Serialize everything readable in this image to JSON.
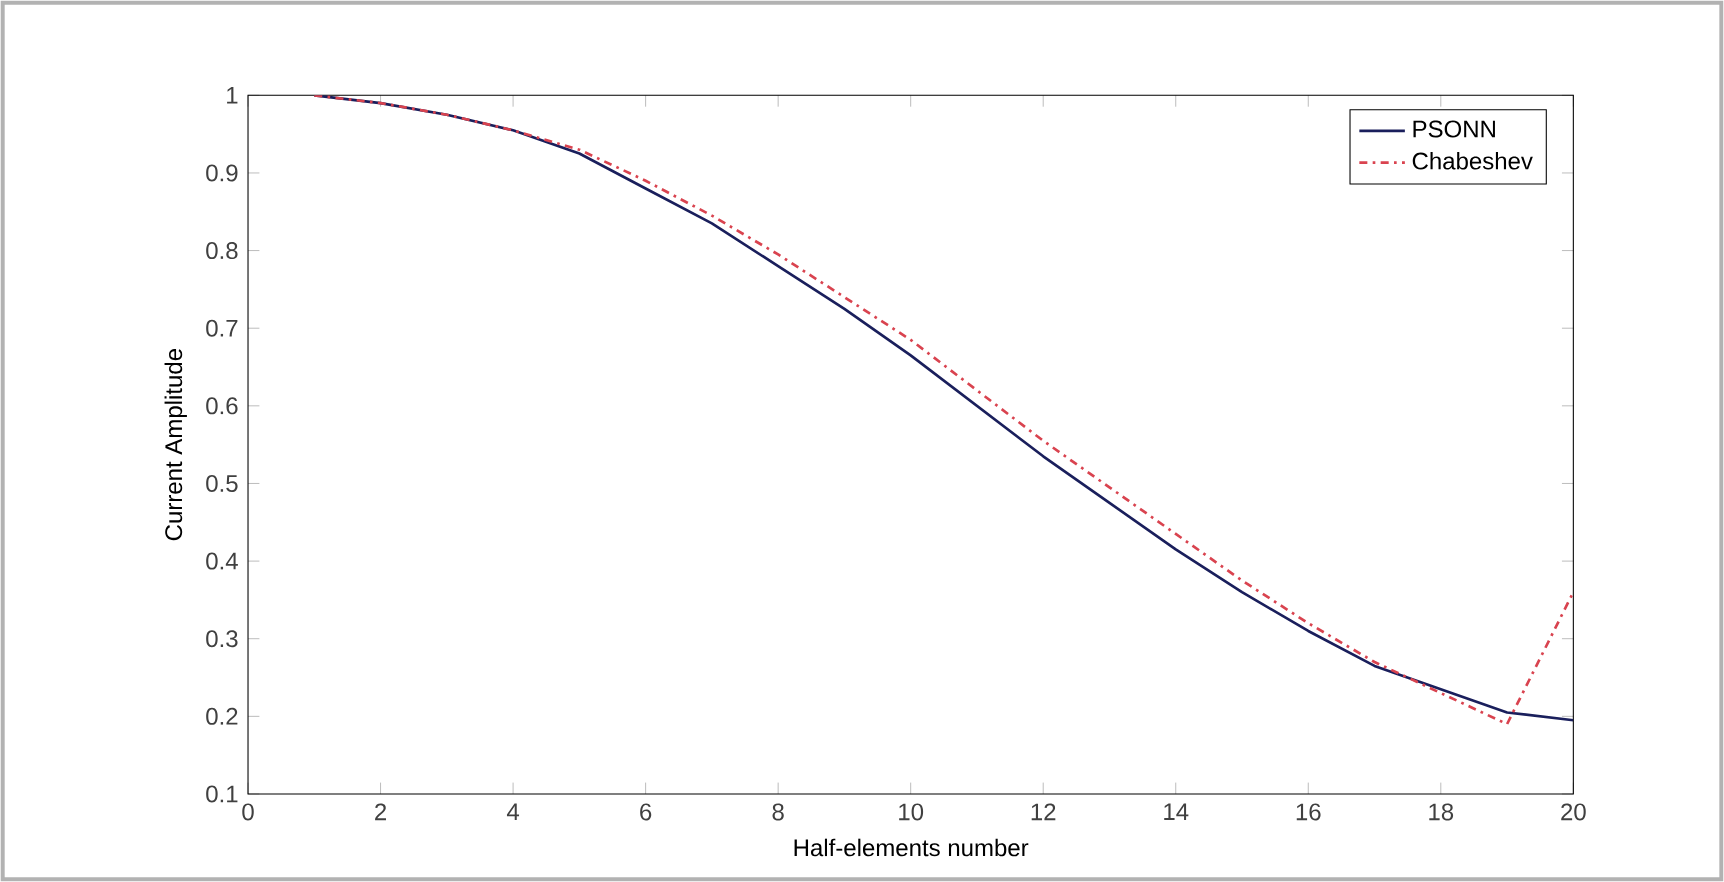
{
  "chart_data": {
    "type": "line",
    "xlabel": "Half-elements number",
    "ylabel": "Current Amplitude",
    "x": [
      1,
      2,
      3,
      4,
      5,
      6,
      7,
      8,
      9,
      10,
      11,
      12,
      13,
      14,
      15,
      16,
      17,
      18,
      19,
      20
    ],
    "series": [
      {
        "name": "PSONN",
        "color": "#1a1f5c",
        "line_style": "solid",
        "values": [
          1.0,
          0.99,
          0.975,
          0.955,
          0.925,
          0.88,
          0.835,
          0.78,
          0.725,
          0.665,
          0.6,
          0.535,
          0.475,
          0.415,
          0.36,
          0.31,
          0.265,
          0.235,
          0.205,
          0.195
        ]
      },
      {
        "name": "Chabeshev",
        "color": "#d9434f",
        "line_style": "dashdot",
        "values": [
          1.0,
          0.99,
          0.975,
          0.955,
          0.93,
          0.89,
          0.845,
          0.795,
          0.74,
          0.685,
          0.62,
          0.555,
          0.495,
          0.435,
          0.375,
          0.32,
          0.27,
          0.23,
          0.19,
          0.36
        ]
      }
    ],
    "xlim": [
      0,
      20
    ],
    "ylim": [
      0.1,
      1
    ],
    "xticks": [
      0,
      2,
      4,
      6,
      8,
      10,
      12,
      14,
      16,
      18,
      20
    ],
    "yticks": [
      0.1,
      0.2,
      0.3,
      0.4,
      0.5,
      0.6,
      0.7,
      0.8,
      0.9,
      1
    ],
    "grid": false,
    "legend": "top right",
    "marker": "none"
  }
}
